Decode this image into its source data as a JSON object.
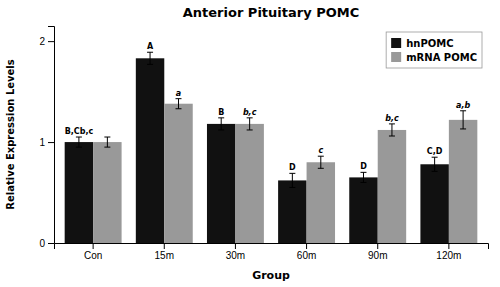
{
  "chart_data": {
    "type": "bar",
    "title": "Anterior Pituitary POMC",
    "xlabel": "Group",
    "ylabel": "Relative Expression Levels",
    "categories": [
      "Con",
      "15m",
      "30m",
      "60m",
      "90m",
      "120m"
    ],
    "series": [
      {
        "name": "hnPOMC",
        "color": "#111111",
        "values": [
          1.0,
          1.83,
          1.18,
          0.62,
          0.65,
          0.78
        ],
        "errors": [
          0.05,
          0.06,
          0.06,
          0.07,
          0.05,
          0.07
        ],
        "labels": [
          "B,Cb,c",
          "A",
          "B",
          "D",
          "D",
          "C,D"
        ]
      },
      {
        "name": "mRNA POMC",
        "color": "#999999",
        "values": [
          1.0,
          1.38,
          1.18,
          0.8,
          1.12,
          1.22
        ],
        "errors": [
          0.05,
          0.05,
          0.06,
          0.06,
          0.06,
          0.09
        ],
        "labels": [
          null,
          "a",
          "b,c",
          "c",
          "b,c",
          "a,b"
        ]
      }
    ],
    "ylim": [
      0,
      2.15
    ],
    "yticks": [
      0,
      1,
      2
    ],
    "grid": false,
    "legend": "upper right"
  }
}
